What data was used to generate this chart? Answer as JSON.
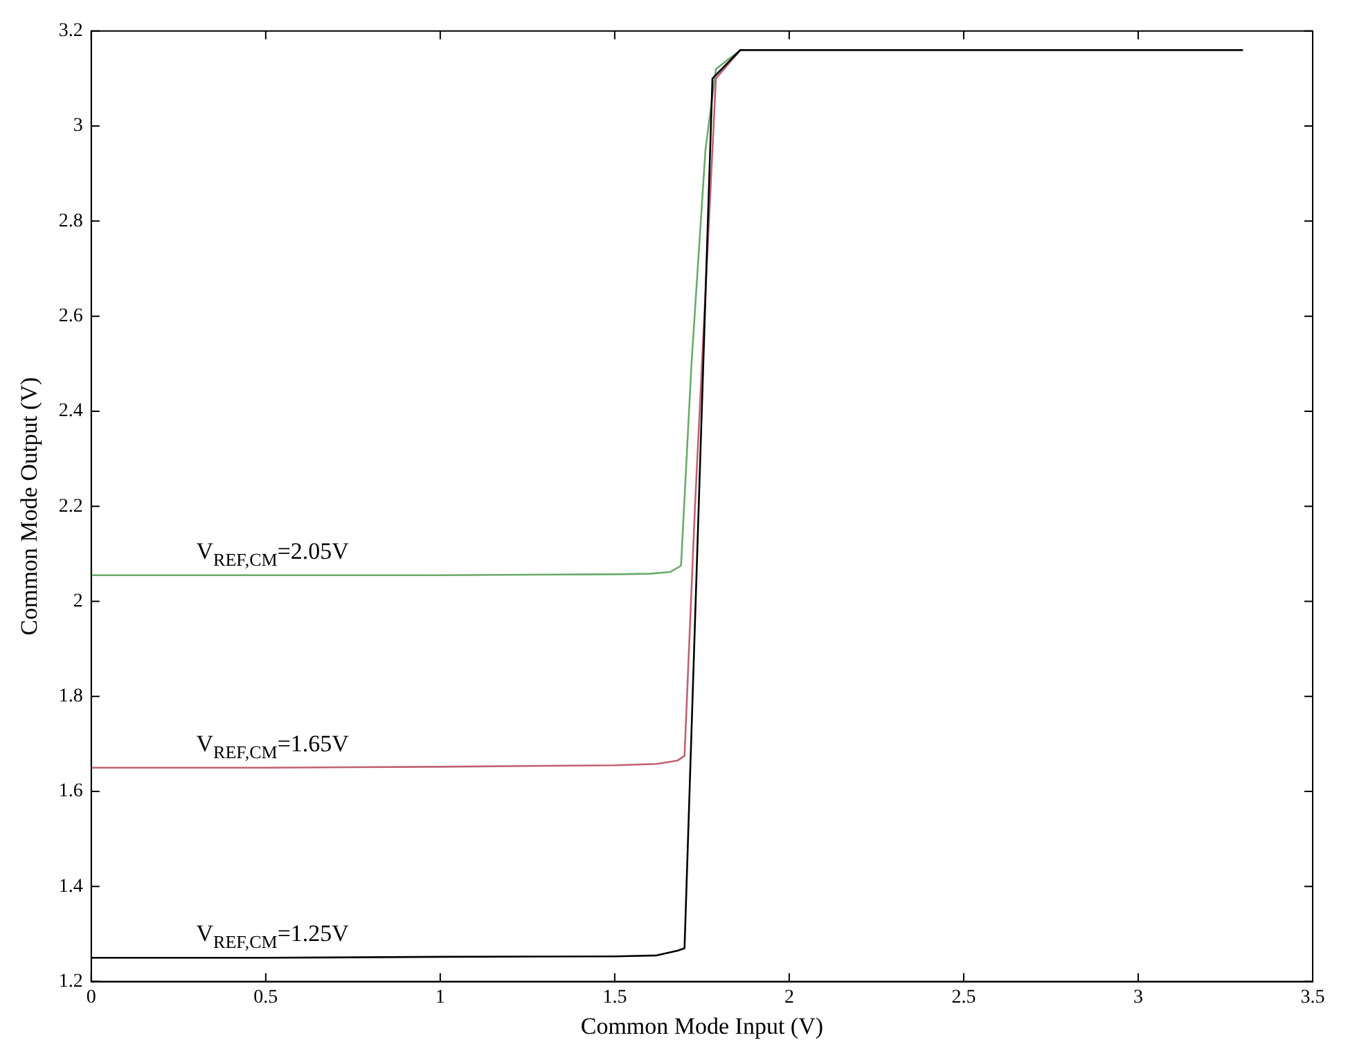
{
  "chart_data": {
    "type": "line",
    "xlabel": "Common Mode Input (V)",
    "ylabel": "Common Mode Output (V)",
    "xlim": [
      0,
      3.5
    ],
    "ylim": [
      1.2,
      3.2
    ],
    "xticks": [
      0,
      0.5,
      1,
      1.5,
      2,
      2.5,
      3,
      3.5
    ],
    "yticks": [
      1.2,
      1.4,
      1.6,
      1.8,
      2,
      2.2,
      2.4,
      2.6,
      2.8,
      3,
      3.2
    ],
    "grid": false,
    "legend": false,
    "marker": "none",
    "line_style": "solid",
    "series": [
      {
        "color": "#6aaa6a",
        "x": [
          0,
          0.5,
          1,
          1.5,
          1.6,
          1.66,
          1.69,
          1.72,
          1.76,
          1.79,
          1.86,
          2.5,
          3.3
        ],
        "values": [
          2.055,
          2.055,
          2.055,
          2.057,
          2.058,
          2.062,
          2.075,
          2.5,
          2.95,
          3.12,
          3.16,
          3.16,
          3.16
        ]
      },
      {
        "color": "#c06070",
        "x": [
          0,
          0.5,
          1,
          1.5,
          1.62,
          1.68,
          1.7,
          1.73,
          1.77,
          1.79,
          1.86,
          2.5,
          3.3
        ],
        "values": [
          1.65,
          1.65,
          1.652,
          1.655,
          1.658,
          1.665,
          1.675,
          2.2,
          2.8,
          3.1,
          3.16,
          3.16,
          3.16
        ]
      },
      {
        "color": "#000000",
        "x": [
          0,
          0.5,
          1,
          1.5,
          1.62,
          1.68,
          1.7,
          1.78,
          1.86,
          2.5,
          3.3
        ],
        "values": [
          1.25,
          1.25,
          1.252,
          1.253,
          1.255,
          1.265,
          1.27,
          3.1,
          3.16,
          3.16,
          3.16
        ]
      }
    ],
    "annotations": [
      "V$_{REF,CM}$=2.05V",
      "V$_{REF,CM}$=1.65V",
      "V$_{REF,CM}$=1.25V"
    ]
  }
}
